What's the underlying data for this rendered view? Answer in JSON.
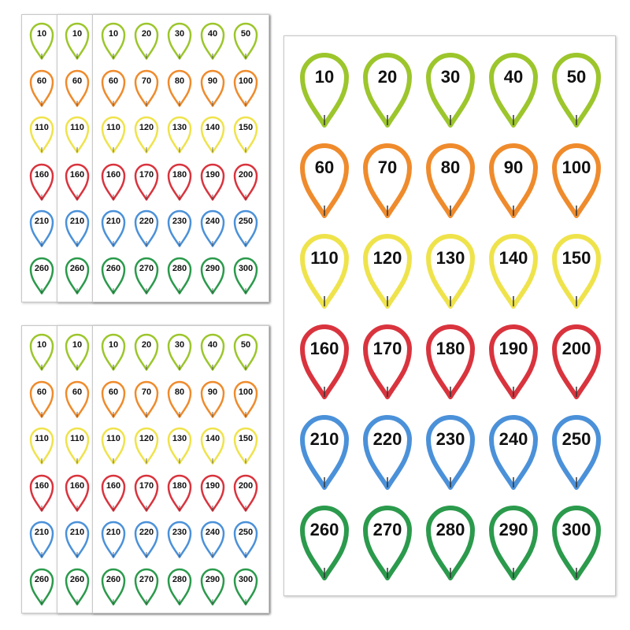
{
  "colors": [
    "#9cc62c",
    "#ef8b2c",
    "#efe34c",
    "#d9343e",
    "#4b91d9",
    "#2b9a4c"
  ],
  "labels": [
    [
      "10",
      "20",
      "30",
      "40",
      "50"
    ],
    [
      "60",
      "70",
      "80",
      "90",
      "100"
    ],
    [
      "110",
      "120",
      "130",
      "140",
      "150"
    ],
    [
      "160",
      "170",
      "180",
      "190",
      "200"
    ],
    [
      "210",
      "220",
      "230",
      "240",
      "250"
    ],
    [
      "260",
      "270",
      "280",
      "290",
      "300"
    ]
  ],
  "icons": {
    "pin": "teardrop-sticker-icon"
  }
}
